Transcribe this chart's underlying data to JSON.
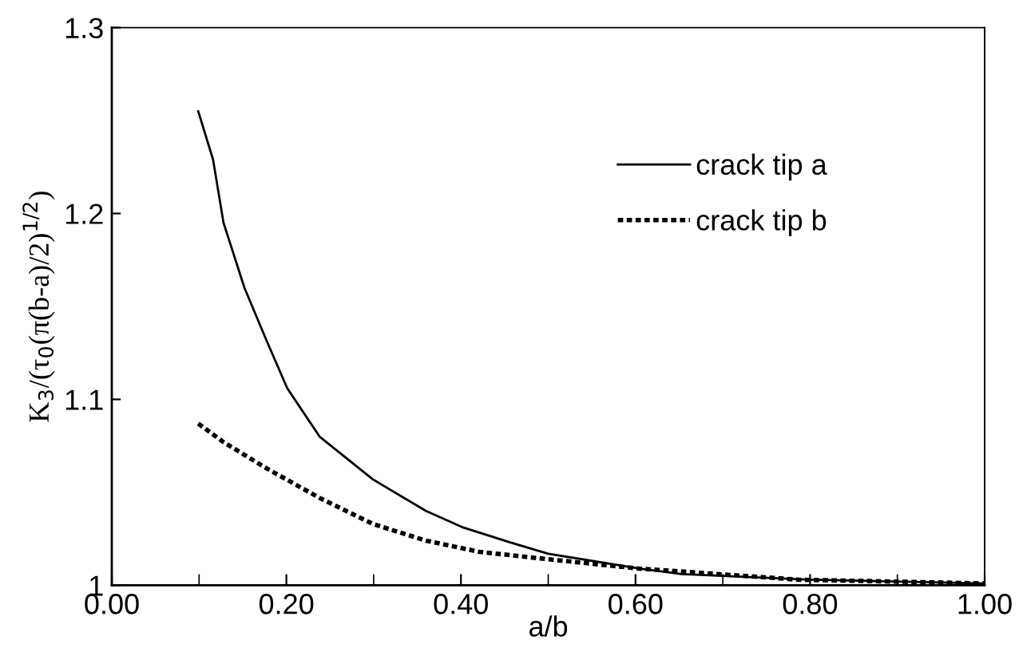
{
  "chart_data": {
    "type": "line",
    "xlabel": "a/b",
    "ylabel": "K$_{3}$/(τ$_{0}$(π(b-a)/2)$^{1/2}$)",
    "xlim": [
      0,
      1
    ],
    "ylim": [
      1,
      1.3
    ],
    "xticks": [
      {
        "value": 0,
        "label": "0.00"
      },
      {
        "value": 0.2,
        "label": "0.20"
      },
      {
        "value": 0.4,
        "label": "0.40"
      },
      {
        "value": 0.6,
        "label": "0.60"
      },
      {
        "value": 0.8,
        "label": "0.80"
      },
      {
        "value": 1,
        "label": "1.00"
      }
    ],
    "yticks": [
      1,
      1.1,
      1.2,
      1.3
    ],
    "grid": false,
    "legend": "right",
    "marker": "none",
    "series": [
      {
        "name": "crack tip a",
        "color": "#000000",
        "line_style": "solid",
        "x": [
          0.099,
          0.116,
          0.128,
          0.152,
          0.177,
          0.201,
          0.238,
          0.299,
          0.36,
          0.403,
          0.457,
          0.5,
          0.604,
          0.653,
          0.799,
          1.0
        ],
        "values": [
          1.255,
          1.229,
          1.195,
          1.16,
          1.132,
          1.106,
          1.08,
          1.057,
          1.04,
          1.031,
          1.023,
          1.017,
          1.009,
          1.006,
          1.003,
          1.001
        ]
      },
      {
        "name": "crack tip b",
        "color": "#000000",
        "line_style": "dotted",
        "x": [
          0.099,
          0.128,
          0.177,
          0.238,
          0.299,
          0.36,
          0.421,
          0.5,
          0.604,
          0.787,
          1.0
        ],
        "values": [
          1.087,
          1.077,
          1.063,
          1.047,
          1.033,
          1.024,
          1.018,
          1.014,
          1.009,
          1.003,
          1.001
        ]
      }
    ]
  }
}
